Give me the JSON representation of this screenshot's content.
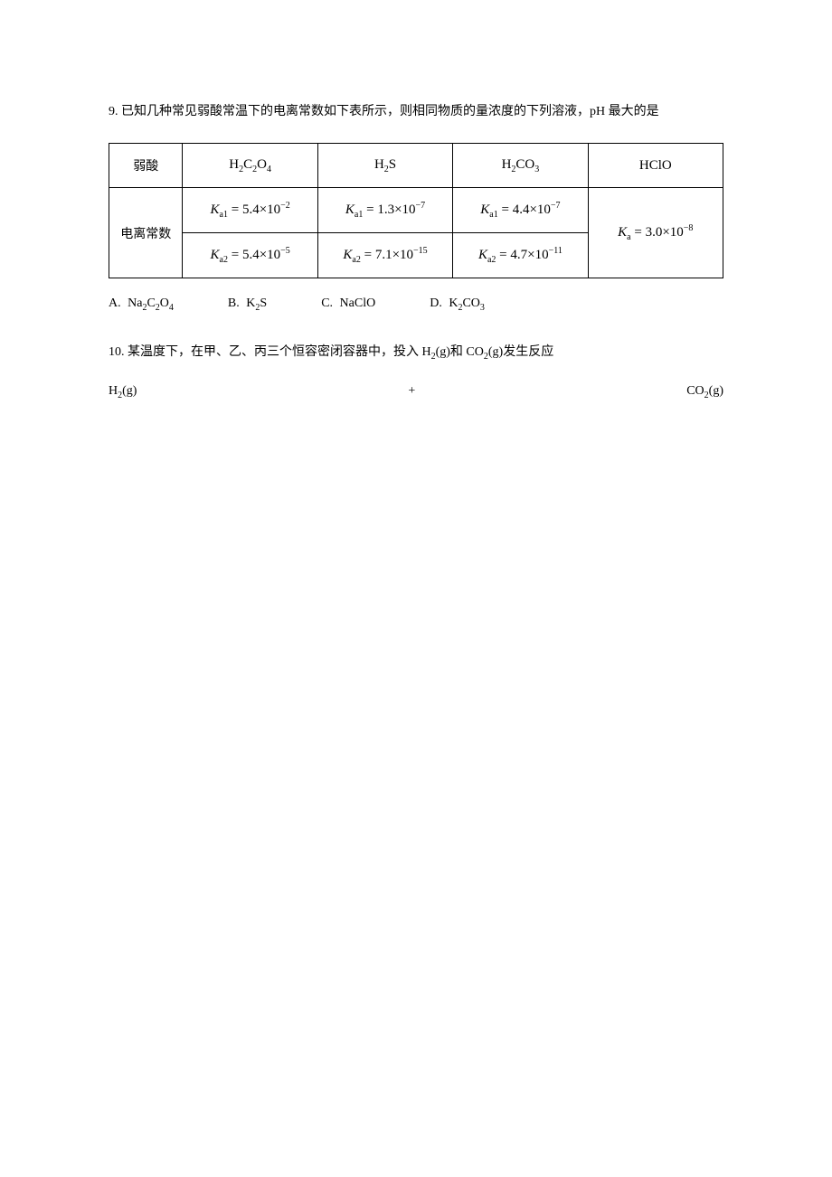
{
  "q9": {
    "text": "9. 已知几种常见弱酸常温下的电离常数如下表所示，则相同物质的量浓度的下列溶液，pH 最大的是",
    "table": {
      "row_header_acid": "弱酸",
      "row_header_const": "电离常数",
      "acids": [
        {
          "formula_html": "H<span class=\"sub\">2</span>C<span class=\"sub\">2</span>O<span class=\"sub\">4</span>",
          "ka": [
            "<i>K</i><span class=\"sub\">a1</span> = 5.4×10<span class=\"sup\">−2</span>",
            "<i>K</i><span class=\"sub\">a2</span> = 5.4×10<span class=\"sup\">−5</span>"
          ]
        },
        {
          "formula_html": "H<span class=\"sub\">2</span>S",
          "ka": [
            "<i>K</i><span class=\"sub\">a1</span> = 1.3×10<span class=\"sup\">−7</span>",
            "<i>K</i><span class=\"sub\">a2</span> = 7.1×10<span class=\"sup\">−15</span>"
          ]
        },
        {
          "formula_html": "H<span class=\"sub\">2</span>CO<span class=\"sub\">3</span>",
          "ka": [
            "<i>K</i><span class=\"sub\">a1</span> = 4.4×10<span class=\"sup\">−7</span>",
            "<i>K</i><span class=\"sub\">a2</span> = 4.7×10<span class=\"sup\">−11</span>"
          ]
        },
        {
          "formula_html": "HClO",
          "ka": [
            "<i>K</i><span class=\"sub\">a</span> = 3.0×10<span class=\"sup\">−8</span>"
          ]
        }
      ]
    },
    "options": [
      {
        "label": "A.",
        "formula_html": "Na<span class=\"sub\">2</span>C<span class=\"sub\">2</span>O<span class=\"sub\">4</span>"
      },
      {
        "label": "B.",
        "formula_html": "K<span class=\"sub\">2</span>S"
      },
      {
        "label": "C.",
        "formula_html": "NaClO"
      },
      {
        "label": "D.",
        "formula_html": "K<span class=\"sub\">2</span>CO<span class=\"sub\">3</span>"
      }
    ]
  },
  "q10": {
    "text_html": "10. 某温度下，在甲、乙、丙三个恒容密闭容器中，投入 H<span class=\"sub\">2</span>(g)和 CO<span class=\"sub\">2</span>(g)发生反应",
    "equation": {
      "left_html": "H<span class=\"sub\">2</span>(g)",
      "mid": "+",
      "right_html": "CO<span class=\"sub\">2</span>(g)"
    }
  }
}
